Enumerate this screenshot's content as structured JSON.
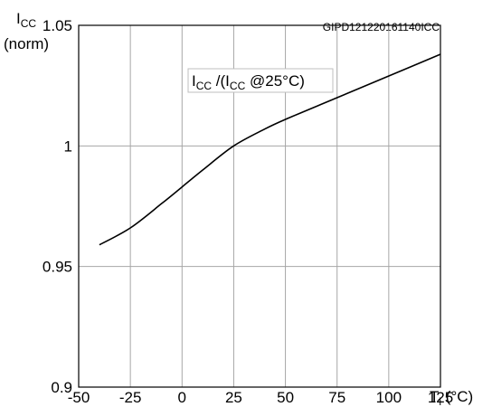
{
  "chart_data": {
    "type": "line",
    "figure_id": "GIPD121220161140ICC",
    "y_axis_label": {
      "main": "I",
      "sub": "CC",
      "unit": "(norm)"
    },
    "x_axis_label": {
      "main": "T",
      "sub": "i",
      "unit": " (°C)"
    },
    "legend_box": {
      "p1": "I",
      "s1": "CC",
      "p2": " /(I",
      "s2": "CC",
      "p3": " @25°C)"
    },
    "xlim": [
      -50,
      125
    ],
    "ylim": [
      0.9,
      1.05
    ],
    "x_ticks": [
      -50,
      -25,
      0,
      25,
      50,
      75,
      100,
      125
    ],
    "x_tick_labels": [
      "-50",
      "-25",
      "0",
      "25",
      "50",
      "75",
      "100",
      "125"
    ],
    "y_ticks": [
      0.9,
      0.95,
      1,
      1.05
    ],
    "y_tick_labels": [
      "0.9",
      "0.95",
      "1",
      "1.05"
    ],
    "grid": true,
    "series": [
      {
        "x": [
          -40,
          -25,
          -10,
          0,
          10,
          25,
          40,
          50,
          75,
          100,
          125
        ],
        "y": [
          0.959,
          0.966,
          0.976,
          0.983,
          0.99,
          1.0,
          1.007,
          1.011,
          1.02,
          1.029,
          1.038
        ]
      }
    ]
  }
}
